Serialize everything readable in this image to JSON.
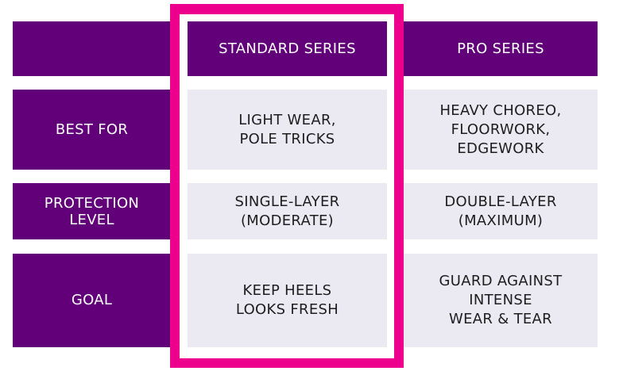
{
  "colors": {
    "header_purple": "#62007a",
    "highlight_pink": "#ec008c",
    "cell_gray": "#ebeaf2"
  },
  "columns": [
    "",
    "STANDARD SERIES",
    "PRO SERIES"
  ],
  "rows": [
    {
      "label": "BEST FOR",
      "standard": "LIGHT WEAR,\nPOLE TRICKS",
      "pro": "HEAVY CHOREO,\nFLOORWORK,\nEDGEWORK"
    },
    {
      "label": "PROTECTION\nLEVEL",
      "standard": "SINGLE-LAYER\n(MODERATE)",
      "pro": "DOUBLE-LAYER\n(MAXIMUM)"
    },
    {
      "label": "GOAL",
      "standard": "KEEP HEELS\nLOOKS FRESH",
      "pro": "GUARD AGAINST\nINTENSE\nWEAR & TEAR"
    }
  ]
}
